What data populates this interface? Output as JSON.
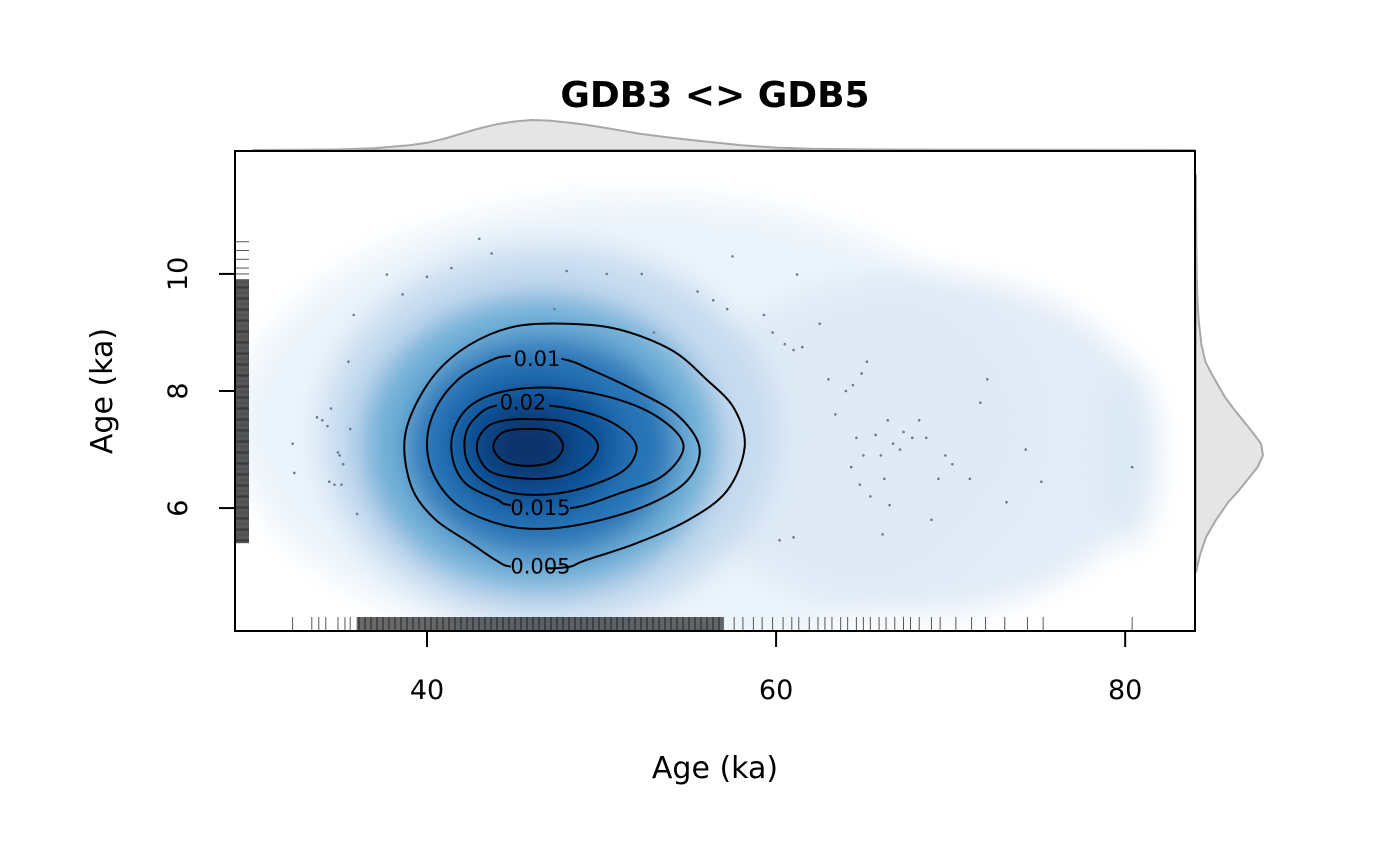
{
  "chart_data": {
    "type": "heatmap",
    "subtype": "2d-density-with-contours-and-marginal-densities",
    "title": "GDB3 <> GDB5",
    "xlabel": "Age (ka)",
    "ylabel": "Age (ka)",
    "xlim": [
      29,
      84
    ],
    "ylim": [
      3.9,
      12.1
    ],
    "x_ticks": [
      40,
      60,
      80
    ],
    "y_ticks": [
      6,
      8,
      10
    ],
    "grid": false,
    "legend": "none",
    "colors": {
      "density_low": "#f7fbff",
      "density_mid": "#4292c6",
      "density_high": "#08306b",
      "contour": "#000000",
      "marginal_fill": "#e5e5e5",
      "marginal_stroke": "#a8a8a8",
      "rug": "#000000",
      "points": "#6b7b8c"
    },
    "density_peak": {
      "x": 45.8,
      "y": 7.05
    },
    "contours": [
      {
        "level": 0.005,
        "label": "0.005",
        "label_pos": [
          46.5,
          5.0
        ],
        "points": [
          [
            46.8,
            4.97
          ],
          [
            48.2,
            5.0
          ],
          [
            49.0,
            5.1
          ],
          [
            52.0,
            5.4
          ],
          [
            55.0,
            5.8
          ],
          [
            57.2,
            6.3
          ],
          [
            58.2,
            7.05
          ],
          [
            57.6,
            7.7
          ],
          [
            56.0,
            8.2
          ],
          [
            54.0,
            8.7
          ],
          [
            51.0,
            9.05
          ],
          [
            48.0,
            9.15
          ],
          [
            45.0,
            9.1
          ],
          [
            42.5,
            8.8
          ],
          [
            40.5,
            8.3
          ],
          [
            39.1,
            7.6
          ],
          [
            38.7,
            7.0
          ],
          [
            39.2,
            6.3
          ],
          [
            40.5,
            5.8
          ],
          [
            42.5,
            5.4
          ],
          [
            44.0,
            5.1
          ],
          [
            44.8,
            5.0
          ]
        ]
      },
      {
        "level": 0.01,
        "label": "0.01",
        "label_pos": [
          46.3,
          8.55
        ],
        "points": [
          [
            47.7,
            8.55
          ],
          [
            49.5,
            8.35
          ],
          [
            52.0,
            8.0
          ],
          [
            54.3,
            7.6
          ],
          [
            55.6,
            7.05
          ],
          [
            55.0,
            6.5
          ],
          [
            53.0,
            6.1
          ],
          [
            50.0,
            5.8
          ],
          [
            47.0,
            5.65
          ],
          [
            44.5,
            5.7
          ],
          [
            42.0,
            6.0
          ],
          [
            40.5,
            6.5
          ],
          [
            40.0,
            7.1
          ],
          [
            40.5,
            7.7
          ],
          [
            41.8,
            8.2
          ],
          [
            43.5,
            8.5
          ],
          [
            44.8,
            8.6
          ]
        ]
      },
      {
        "level": 0.015,
        "label": "0.015",
        "label_pos": [
          46.5,
          6.0
        ],
        "points": [
          [
            48.2,
            6.0
          ],
          [
            51.0,
            6.25
          ],
          [
            53.5,
            6.55
          ],
          [
            54.7,
            7.05
          ],
          [
            53.5,
            7.5
          ],
          [
            51.0,
            7.85
          ],
          [
            47.5,
            8.05
          ],
          [
            44.5,
            8.0
          ],
          [
            42.5,
            7.75
          ],
          [
            41.5,
            7.3
          ],
          [
            41.5,
            6.8
          ],
          [
            42.3,
            6.4
          ],
          [
            44.0,
            6.15
          ],
          [
            44.8,
            6.05
          ]
        ]
      },
      {
        "level": 0.02,
        "label": "0.02",
        "label_pos": [
          45.5,
          7.8
        ],
        "points": [
          [
            47.0,
            7.75
          ],
          [
            49.5,
            7.6
          ],
          [
            51.2,
            7.35
          ],
          [
            52.0,
            7.05
          ],
          [
            51.5,
            6.7
          ],
          [
            50.0,
            6.45
          ],
          [
            47.5,
            6.25
          ],
          [
            45.0,
            6.25
          ],
          [
            43.3,
            6.45
          ],
          [
            42.3,
            6.8
          ],
          [
            42.2,
            7.25
          ],
          [
            42.8,
            7.55
          ],
          [
            44.0,
            7.75
          ]
        ]
      },
      {
        "level": 0.025,
        "label": "",
        "label_pos": null,
        "points": [
          [
            45.8,
            7.52
          ],
          [
            47.8,
            7.48
          ],
          [
            49.2,
            7.3
          ],
          [
            49.8,
            7.05
          ],
          [
            49.2,
            6.75
          ],
          [
            47.8,
            6.55
          ],
          [
            45.8,
            6.5
          ],
          [
            43.8,
            6.6
          ],
          [
            43.0,
            6.85
          ],
          [
            42.9,
            7.15
          ],
          [
            43.5,
            7.4
          ],
          [
            44.5,
            7.5
          ]
        ]
      },
      {
        "level": 0.03,
        "label": "",
        "label_pos": null,
        "points": [
          [
            45.8,
            7.35
          ],
          [
            47.2,
            7.3
          ],
          [
            47.8,
            7.05
          ],
          [
            47.2,
            6.8
          ],
          [
            45.8,
            6.72
          ],
          [
            44.4,
            6.8
          ],
          [
            43.8,
            7.05
          ],
          [
            44.4,
            7.3
          ]
        ]
      }
    ],
    "x_marginal": {
      "x": [
        30,
        33,
        35,
        37,
        39,
        40,
        41,
        42,
        43,
        44,
        45,
        46,
        47,
        48,
        49,
        50,
        51,
        52,
        53,
        54,
        55,
        56,
        57,
        58,
        60,
        62,
        65,
        70,
        75,
        80,
        84
      ],
      "density": [
        0.0,
        0.006,
        0.02,
        0.06,
        0.16,
        0.24,
        0.38,
        0.55,
        0.72,
        0.86,
        0.95,
        1.0,
        0.98,
        0.92,
        0.85,
        0.76,
        0.66,
        0.56,
        0.48,
        0.41,
        0.34,
        0.28,
        0.22,
        0.16,
        0.08,
        0.04,
        0.02,
        0.01,
        0.005,
        0.003,
        0.0
      ]
    },
    "y_marginal": {
      "y": [
        4.9,
        5.2,
        5.5,
        5.8,
        6.1,
        6.3,
        6.5,
        6.7,
        6.9,
        7.1,
        7.3,
        7.5,
        7.7,
        7.9,
        8.1,
        8.3,
        8.5,
        8.8,
        9.2,
        9.6,
        10.0,
        10.5,
        11.0,
        11.7
      ],
      "density": [
        0.0,
        0.06,
        0.15,
        0.3,
        0.48,
        0.64,
        0.78,
        0.92,
        1.0,
        0.97,
        0.84,
        0.7,
        0.56,
        0.43,
        0.33,
        0.23,
        0.14,
        0.08,
        0.04,
        0.02,
        0.01,
        0.004,
        0.001,
        0.0
      ]
    },
    "x_rug_dense": [
      36,
      57
    ],
    "x_rug_sparse": [
      32.3,
      33.4,
      33.8,
      34.2,
      34.9,
      35.3,
      35.6,
      57.6,
      58.1,
      58.7,
      59.2,
      59.8,
      60.4,
      60.9,
      61.3,
      61.9,
      62.4,
      62.8,
      63.2,
      63.7,
      64.1,
      64.6,
      65.0,
      65.4,
      65.9,
      66.3,
      66.8,
      67.3,
      67.7,
      68.2,
      68.9,
      69.4,
      70.3,
      71.2,
      72.0,
      73.1,
      74.4,
      75.3,
      80.4
    ],
    "y_rug_dense": [
      5.4,
      9.9
    ],
    "y_rug_sparse": [
      10.0,
      10.1,
      10.25,
      10.4,
      10.55
    ],
    "points": [
      [
        32.3,
        7.1
      ],
      [
        32.4,
        6.6
      ],
      [
        33.7,
        7.55
      ],
      [
        34.0,
        7.5
      ],
      [
        34.3,
        7.4
      ],
      [
        34.5,
        7.7
      ],
      [
        34.9,
        6.95
      ],
      [
        34.4,
        6.45
      ],
      [
        34.7,
        6.4
      ],
      [
        35.1,
        6.4
      ],
      [
        35.2,
        6.75
      ],
      [
        35.0,
        6.9
      ],
      [
        35.6,
        7.35
      ],
      [
        35.5,
        8.5
      ],
      [
        35.8,
        9.3
      ],
      [
        36.0,
        5.9
      ],
      [
        37.7,
        9.99
      ],
      [
        38.6,
        9.65
      ],
      [
        40.0,
        9.95
      ],
      [
        41.4,
        10.1
      ],
      [
        43.0,
        10.6
      ],
      [
        43.7,
        10.35
      ],
      [
        48.0,
        10.05
      ],
      [
        50.3,
        10.0
      ],
      [
        52.3,
        10.0
      ],
      [
        55.5,
        9.7
      ],
      [
        56.4,
        9.55
      ],
      [
        57.2,
        9.4
      ],
      [
        57.5,
        10.3
      ],
      [
        59.3,
        9.3
      ],
      [
        59.8,
        9.0
      ],
      [
        60.5,
        8.8
      ],
      [
        61.0,
        8.7
      ],
      [
        61.5,
        8.75
      ],
      [
        61.2,
        9.99
      ],
      [
        62.5,
        9.15
      ],
      [
        63.0,
        8.2
      ],
      [
        63.4,
        7.6
      ],
      [
        64.0,
        8.0
      ],
      [
        64.4,
        8.1
      ],
      [
        64.9,
        8.3
      ],
      [
        65.2,
        8.5
      ],
      [
        64.6,
        7.2
      ],
      [
        64.3,
        6.7
      ],
      [
        64.8,
        6.4
      ],
      [
        65.0,
        6.9
      ],
      [
        65.4,
        6.2
      ],
      [
        65.7,
        7.25
      ],
      [
        66.0,
        6.9
      ],
      [
        66.2,
        6.5
      ],
      [
        66.4,
        7.5
      ],
      [
        66.7,
        7.1
      ],
      [
        66.1,
        5.55
      ],
      [
        66.5,
        6.05
      ],
      [
        67.1,
        7.0
      ],
      [
        67.3,
        7.3
      ],
      [
        67.8,
        7.2
      ],
      [
        68.2,
        7.5
      ],
      [
        68.6,
        7.2
      ],
      [
        68.9,
        5.8
      ],
      [
        69.3,
        6.5
      ],
      [
        69.7,
        6.9
      ],
      [
        70.1,
        6.75
      ],
      [
        71.1,
        6.5
      ],
      [
        71.7,
        7.8
      ],
      [
        72.1,
        8.2
      ],
      [
        73.2,
        6.1
      ],
      [
        74.3,
        7.0
      ],
      [
        75.2,
        6.45
      ],
      [
        80.4,
        6.7
      ],
      [
        60.2,
        5.45
      ],
      [
        61.0,
        5.5
      ],
      [
        47.3,
        9.4
      ],
      [
        53.0,
        9.0
      ]
    ]
  }
}
